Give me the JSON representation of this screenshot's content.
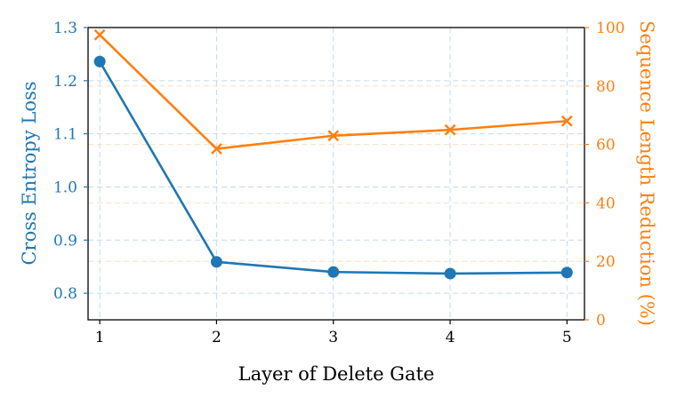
{
  "chart_data": {
    "type": "line",
    "xlabel": "Layer of Delete Gate",
    "ylabel": "Cross Entropy Loss",
    "y2label": "Sequence Length Reduction (%)",
    "x": [
      1,
      2,
      3,
      4,
      5
    ],
    "x_ticks": [
      "1",
      "2",
      "3",
      "4",
      "5"
    ],
    "xlim": [
      0.9,
      5.15
    ],
    "ylim": [
      0.75,
      1.3
    ],
    "y_ticks": [
      "0.8",
      "0.9",
      "1.0",
      "1.1",
      "1.2",
      "1.3"
    ],
    "y2lim": [
      0,
      100
    ],
    "y2_ticks": [
      "0",
      "20",
      "40",
      "60",
      "80",
      "100"
    ],
    "grid": true,
    "series": [
      {
        "axis": "left",
        "marker": "circle",
        "color": "#1f77b4",
        "values": [
          1.236,
          0.859,
          0.84,
          0.837,
          0.839
        ]
      },
      {
        "axis": "right",
        "marker": "x",
        "color": "#ff7f0e",
        "values": [
          97.5,
          58.5,
          63.0,
          65.0,
          68.0
        ]
      }
    ]
  }
}
